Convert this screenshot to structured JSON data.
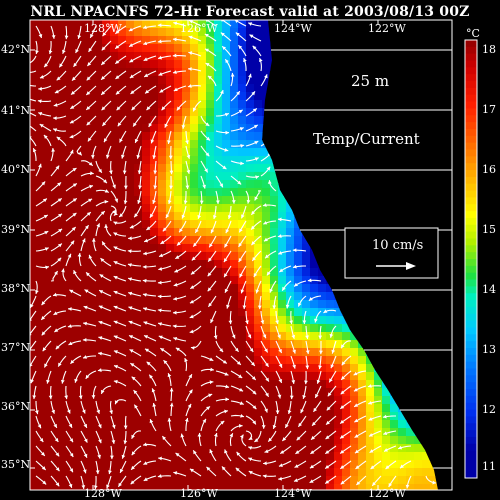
{
  "title": "NRL NPACNFS 72-Hr Forecast valid at 2003/08/13 00Z",
  "depth_label": "25 m",
  "field_label": "Temp/Current",
  "scale_vector_label": "10 cm/s",
  "colorbar": {
    "unit": "°C",
    "ticks": [
      "18",
      "17",
      "16",
      "15",
      "14",
      "13",
      "12",
      "11"
    ],
    "range": [
      10.5,
      18.5
    ]
  },
  "longitude_ticks": [
    "128°W",
    "126°W",
    "124°W",
    "122°W"
  ],
  "latitude_ticks": [
    "42°N",
    "41°N",
    "40°N",
    "39°N",
    "38°N",
    "37°N",
    "36°N",
    "35°N"
  ],
  "map": {
    "lon_range": [
      -129.5,
      -120.7
    ],
    "lat_range": [
      34.6,
      42.3
    ],
    "grid": true,
    "land_color": "#000000"
  }
}
